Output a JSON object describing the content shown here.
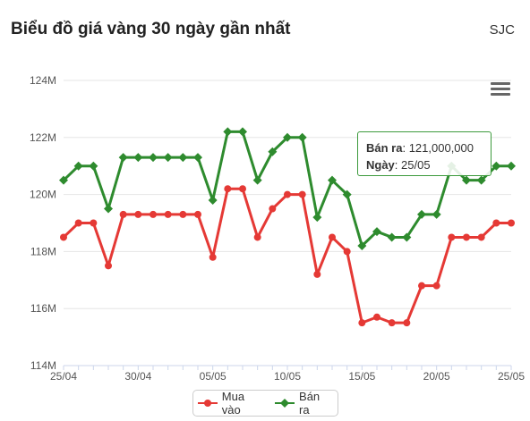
{
  "title": "Biểu đồ giá vàng 30 ngày gần nhất",
  "source": "SJC",
  "menu_icon": "hamburger-menu-icon",
  "tooltip": {
    "series_label": "Bán ra",
    "value_text": "121,000,000",
    "date_label": "Ngày",
    "date_text": "25/05"
  },
  "chart_data": {
    "type": "line",
    "y_tick_labels": [
      "114M",
      "116M",
      "118M",
      "120M",
      "122M",
      "124M"
    ],
    "y_ticks": [
      114,
      116,
      118,
      120,
      122,
      124
    ],
    "ylim": [
      114,
      124
    ],
    "x_tick_labels": [
      "25/04",
      "30/04",
      "05/05",
      "10/05",
      "15/05",
      "20/05",
      "25/05"
    ],
    "x_tick_index": [
      0,
      5,
      10,
      15,
      20,
      25,
      30
    ],
    "x_count": 31,
    "grid": true,
    "legend_position": "bottom-center",
    "series": [
      {
        "name": "Mua vào",
        "color": "#e53935",
        "marker": "circle",
        "values": [
          118.5,
          119.0,
          119.0,
          117.5,
          119.3,
          119.3,
          119.3,
          119.3,
          119.3,
          119.3,
          117.8,
          120.2,
          120.2,
          118.5,
          119.5,
          120.0,
          120.0,
          117.2,
          118.5,
          118.0,
          115.5,
          115.7,
          115.5,
          115.5,
          116.8,
          116.8,
          118.5,
          118.5,
          118.5,
          119.0,
          119.0
        ]
      },
      {
        "name": "Bán ra",
        "color": "#2e8b2e",
        "marker": "diamond",
        "values": [
          120.5,
          121.0,
          121.0,
          119.5,
          121.3,
          121.3,
          121.3,
          121.3,
          121.3,
          121.3,
          119.8,
          122.2,
          122.2,
          120.5,
          121.5,
          122.0,
          122.0,
          119.2,
          120.5,
          120.0,
          118.2,
          118.7,
          118.5,
          118.5,
          119.3,
          119.3,
          121.0,
          120.5,
          120.5,
          121.0,
          121.0
        ]
      }
    ]
  }
}
